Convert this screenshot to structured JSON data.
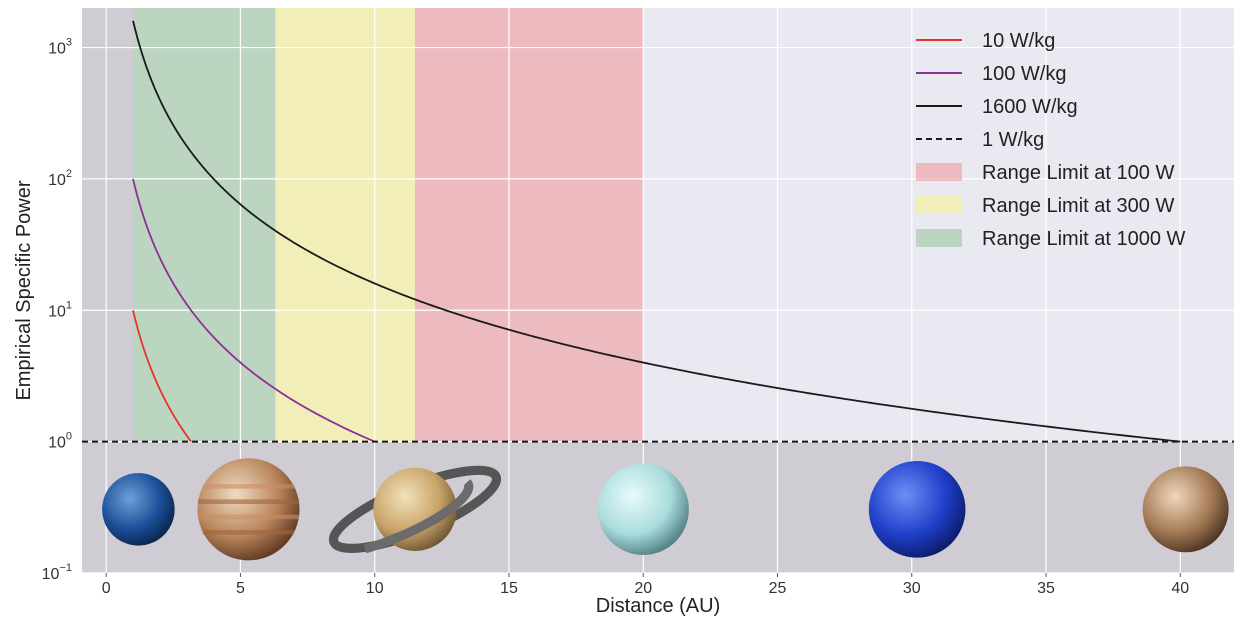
{
  "chart_data": {
    "type": "line",
    "title": "",
    "xlabel": "Distance (AU)",
    "ylabel": "Empirical Specific Power",
    "xlim": [
      -0.9,
      42
    ],
    "ylim": [
      0.1,
      2000
    ],
    "y_scale": "log",
    "grid": true,
    "legend_position": "top-right",
    "x_ticks": [
      0,
      5,
      10,
      15,
      20,
      25,
      30,
      35,
      40
    ],
    "y_ticks": [
      {
        "value": 0.1,
        "base": "10",
        "exp": "−1"
      },
      {
        "value": 1,
        "base": "10",
        "exp": "0"
      },
      {
        "value": 10,
        "base": "10",
        "exp": "1"
      },
      {
        "value": 100,
        "base": "10",
        "exp": "2"
      },
      {
        "value": 1000,
        "base": "10",
        "exp": "3"
      }
    ],
    "series": [
      {
        "name": "10 W/kg",
        "color": "#e8322a",
        "style": "solid",
        "y_at_1AU": 10,
        "x_start": 1,
        "falloff": "inverse-square"
      },
      {
        "name": "100 W/kg",
        "color": "#8e2f97",
        "style": "solid",
        "y_at_1AU": 100,
        "x_start": 1,
        "falloff": "inverse-square"
      },
      {
        "name": "1600 W/kg",
        "color": "#1a1a1a",
        "style": "solid",
        "y_at_1AU": 1600,
        "x_start": 1,
        "falloff": "inverse-square"
      },
      {
        "name": "1 W/kg",
        "color": "#1a1a1a",
        "style": "dashed",
        "constant": 1
      }
    ],
    "regions": [
      {
        "name": "Range Limit at 100 W",
        "x": [
          11.5,
          20
        ],
        "color": "#f08080",
        "opacity": 0.45
      },
      {
        "name": "Range Limit at 300 W",
        "x": [
          6.3,
          11.5
        ],
        "color": "#f5f0a0",
        "opacity": 0.7
      },
      {
        "name": "Range Limit at 1000 W",
        "x": [
          1,
          6.3
        ],
        "color": "#8fc28f",
        "opacity": 0.5
      }
    ],
    "shaded_zones": [
      {
        "name": "below-1AU",
        "x": [
          -0.9,
          1
        ],
        "y": [
          1,
          2000
        ],
        "color": "#cfccd3"
      },
      {
        "name": "planet-band",
        "x": [
          -0.9,
          42
        ],
        "y": [
          0.1,
          1
        ],
        "color": "#cfccd3"
      }
    ],
    "legend_order": [
      "10 W/kg",
      "100 W/kg",
      "1600 W/kg",
      "1 W/kg",
      "Range Limit at 100 W",
      "Range Limit at 300 W",
      "Range Limit at 1000 W"
    ],
    "planets": [
      {
        "name": "earth",
        "x": 1.2,
        "radius": 1.35,
        "colors": [
          "#6fa0d8",
          "#1c4f9a",
          "#0b2448"
        ]
      },
      {
        "name": "jupiter",
        "x": 5.3,
        "radius": 1.9,
        "colors": [
          "#f0dcc2",
          "#b8845a",
          "#5b3520"
        ]
      },
      {
        "name": "saturn",
        "x": 11.5,
        "radius": 1.55,
        "colors": [
          "#f2e2b8",
          "#c9a36a",
          "#6a5330"
        ]
      },
      {
        "name": "uranus",
        "x": 20,
        "radius": 1.7,
        "colors": [
          "#e8fbfb",
          "#a9dcdc",
          "#4e7b7e"
        ]
      },
      {
        "name": "neptune",
        "x": 30.2,
        "radius": 1.8,
        "colors": [
          "#6d8ef5",
          "#1f3fc9",
          "#0a1a66"
        ]
      },
      {
        "name": "pluto",
        "x": 40.2,
        "radius": 1.6,
        "colors": [
          "#f0d8bc",
          "#a47a56",
          "#4a3120"
        ]
      }
    ]
  }
}
